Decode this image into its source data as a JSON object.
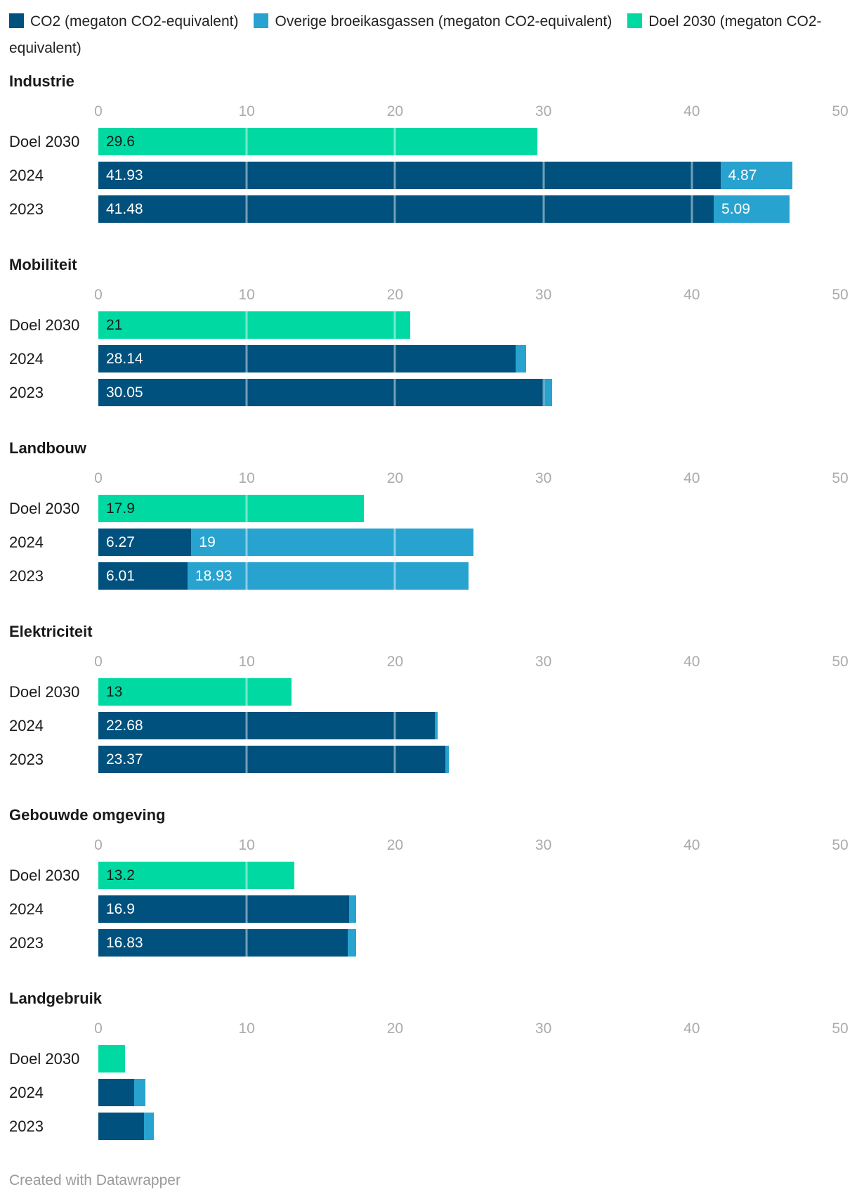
{
  "chart_data": {
    "type": "bar",
    "orientation": "horizontal",
    "stacked": true,
    "grid": "vertical-ticks-over-bars",
    "legend_position": "top",
    "colors": {
      "co2": "#00517D",
      "overige": "#28A3CF",
      "doel": "#00D9A2"
    },
    "legend": {
      "items": [
        {
          "series": "co2",
          "label": "CO2 (megaton CO2-equivalent)"
        },
        {
          "series": "overige",
          "label": "Overige broeikasgassen (megaton CO2-equivalent)"
        },
        {
          "series": "doel",
          "label": "Doel 2030 (megaton CO2-equivalent)"
        }
      ]
    },
    "axis": {
      "min": 0,
      "max": 50,
      "ticks": [
        0,
        10,
        20,
        30,
        40,
        50
      ]
    },
    "panels": [
      {
        "title": "Industrie",
        "rows": [
          {
            "label": "Doel 2030",
            "segments": [
              {
                "series": "doel",
                "value": 29.6,
                "text": "29.6"
              }
            ]
          },
          {
            "label": "2024",
            "segments": [
              {
                "series": "co2",
                "value": 41.93,
                "text": "41.93"
              },
              {
                "series": "overige",
                "value": 4.87,
                "text": "4.87"
              }
            ]
          },
          {
            "label": "2023",
            "segments": [
              {
                "series": "co2",
                "value": 41.48,
                "text": "41.48"
              },
              {
                "series": "overige",
                "value": 5.09,
                "text": "5.09"
              }
            ]
          }
        ]
      },
      {
        "title": "Mobiliteit",
        "rows": [
          {
            "label": "Doel 2030",
            "segments": [
              {
                "series": "doel",
                "value": 21,
                "text": "21"
              }
            ]
          },
          {
            "label": "2024",
            "segments": [
              {
                "series": "co2",
                "value": 28.14,
                "text": "28.14"
              },
              {
                "series": "overige",
                "value": 0.7,
                "text": ""
              }
            ]
          },
          {
            "label": "2023",
            "segments": [
              {
                "series": "co2",
                "value": 30.05,
                "text": "30.05"
              },
              {
                "series": "overige",
                "value": 0.55,
                "text": ""
              }
            ]
          }
        ]
      },
      {
        "title": "Landbouw",
        "rows": [
          {
            "label": "Doel 2030",
            "segments": [
              {
                "series": "doel",
                "value": 17.9,
                "text": "17.9"
              }
            ]
          },
          {
            "label": "2024",
            "segments": [
              {
                "series": "co2",
                "value": 6.27,
                "text": "6.27"
              },
              {
                "series": "overige",
                "value": 19,
                "text": "19"
              }
            ]
          },
          {
            "label": "2023",
            "segments": [
              {
                "series": "co2",
                "value": 6.01,
                "text": "6.01"
              },
              {
                "series": "overige",
                "value": 18.93,
                "text": "18.93"
              }
            ]
          }
        ]
      },
      {
        "title": "Elektriciteit",
        "rows": [
          {
            "label": "Doel 2030",
            "segments": [
              {
                "series": "doel",
                "value": 13,
                "text": "13"
              }
            ]
          },
          {
            "label": "2024",
            "segments": [
              {
                "series": "co2",
                "value": 22.68,
                "text": "22.68"
              },
              {
                "series": "overige",
                "value": 0.2,
                "text": ""
              }
            ]
          },
          {
            "label": "2023",
            "segments": [
              {
                "series": "co2",
                "value": 23.37,
                "text": "23.37"
              },
              {
                "series": "overige",
                "value": 0.25,
                "text": ""
              }
            ]
          }
        ]
      },
      {
        "title": "Gebouwde omgeving",
        "rows": [
          {
            "label": "Doel 2030",
            "segments": [
              {
                "series": "doel",
                "value": 13.2,
                "text": "13.2"
              }
            ]
          },
          {
            "label": "2024",
            "segments": [
              {
                "series": "co2",
                "value": 16.9,
                "text": "16.9"
              },
              {
                "series": "overige",
                "value": 0.5,
                "text": ""
              }
            ]
          },
          {
            "label": "2023",
            "segments": [
              {
                "series": "co2",
                "value": 16.83,
                "text": "16.83"
              },
              {
                "series": "overige",
                "value": 0.55,
                "text": ""
              }
            ]
          }
        ]
      },
      {
        "title": "Landgebruik",
        "rows": [
          {
            "label": "Doel 2030",
            "segments": [
              {
                "series": "doel",
                "value": 1.8,
                "text": ""
              }
            ]
          },
          {
            "label": "2024",
            "segments": [
              {
                "series": "co2",
                "value": 2.4,
                "text": ""
              },
              {
                "series": "overige",
                "value": 0.75,
                "text": ""
              }
            ]
          },
          {
            "label": "2023",
            "segments": [
              {
                "series": "co2",
                "value": 3.1,
                "text": ""
              },
              {
                "series": "overige",
                "value": 0.65,
                "text": ""
              }
            ]
          }
        ]
      }
    ],
    "footer": "Created with Datawrapper"
  }
}
